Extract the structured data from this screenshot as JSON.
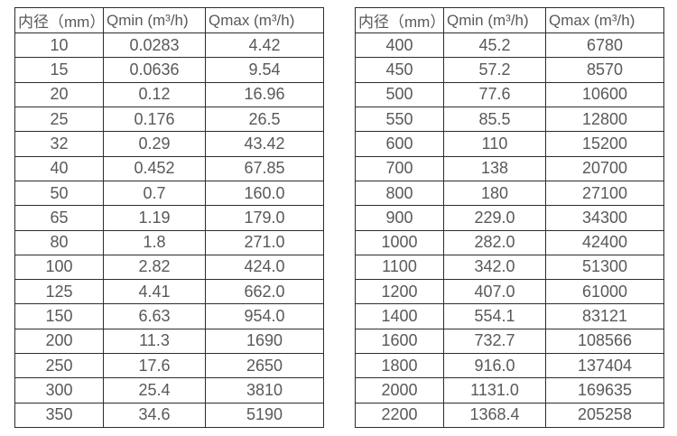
{
  "page": {
    "background_color": "#ffffff",
    "border_color": "#2d2d2d",
    "text_color": "#58595b"
  },
  "tables": [
    {
      "name": "flow-rate-table-small-diameters",
      "headers": [
        "内径（mm）",
        "Qmin (m³/h)",
        "Qmax (m³/h)"
      ],
      "rows": [
        [
          "10",
          "0.0283",
          "4.42"
        ],
        [
          "15",
          "0.0636",
          "9.54"
        ],
        [
          "20",
          "0.12",
          "16.96"
        ],
        [
          "25",
          "0.176",
          "26.5"
        ],
        [
          "32",
          "0.29",
          "43.42"
        ],
        [
          "40",
          "0.452",
          "67.85"
        ],
        [
          "50",
          "0.7",
          "160.0"
        ],
        [
          "65",
          "1.19",
          "179.0"
        ],
        [
          "80",
          "1.8",
          "271.0"
        ],
        [
          "100",
          "2.82",
          "424.0"
        ],
        [
          "125",
          "4.41",
          "662.0"
        ],
        [
          "150",
          "6.63",
          "954.0"
        ],
        [
          "200",
          "11.3",
          "1690"
        ],
        [
          "250",
          "17.6",
          "2650"
        ],
        [
          "300",
          "25.4",
          "3810"
        ],
        [
          "350",
          "34.6",
          "5190"
        ]
      ]
    },
    {
      "name": "flow-rate-table-large-diameters",
      "headers": [
        "内径（mm）",
        "Qmin (m³/h)",
        "Qmax (m³/h)"
      ],
      "rows": [
        [
          "400",
          "45.2",
          "6780"
        ],
        [
          "450",
          "57.2",
          "8570"
        ],
        [
          "500",
          "77.6",
          "10600"
        ],
        [
          "550",
          "85.5",
          "12800"
        ],
        [
          "600",
          "110",
          "15200"
        ],
        [
          "700",
          "138",
          "20700"
        ],
        [
          "800",
          "180",
          "27100"
        ],
        [
          "900",
          "229.0",
          "34300"
        ],
        [
          "1000",
          "282.0",
          "42400"
        ],
        [
          "1100",
          "342.0",
          "51300"
        ],
        [
          "1200",
          "407.0",
          "61000"
        ],
        [
          "1400",
          "554.1",
          "83121"
        ],
        [
          "1600",
          "732.7",
          "108566"
        ],
        [
          "1800",
          "916.0",
          "137404"
        ],
        [
          "2000",
          "1131.0",
          "169635"
        ],
        [
          "2200",
          "1368.4",
          "205258"
        ]
      ]
    }
  ]
}
